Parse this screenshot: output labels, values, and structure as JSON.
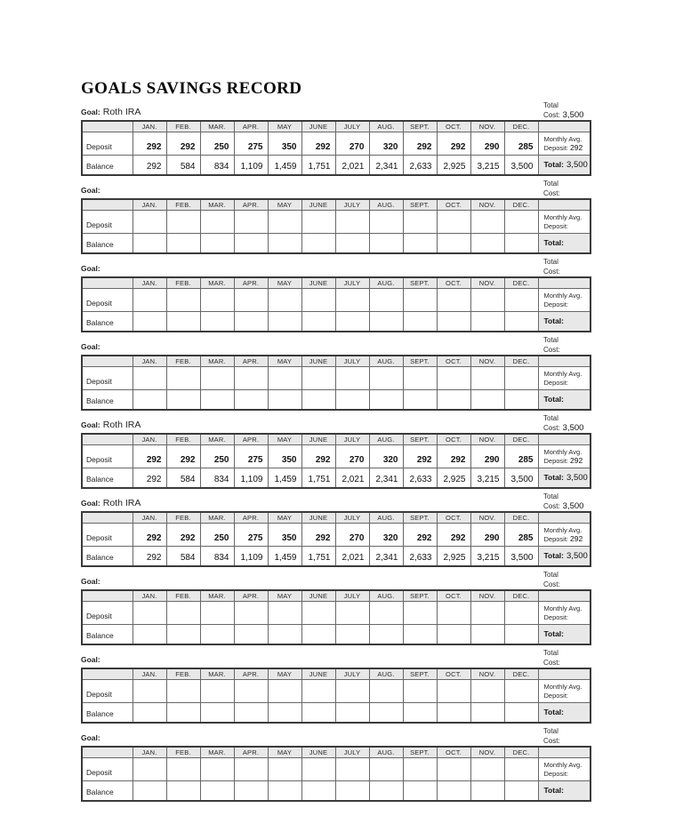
{
  "page": {
    "title": "GOALS SAVINGS RECORD"
  },
  "labels": {
    "goal": "Goal:",
    "total": "Total",
    "cost": "Cost:",
    "deposit": "Deposit",
    "balance": "Balance",
    "monthly_avg_line1": "Monthly Avg.",
    "monthly_avg_label": "Deposit:",
    "row_total_label": "Total:"
  },
  "months": [
    "JAN.",
    "FEB.",
    "MAR.",
    "APR.",
    "MAY",
    "JUNE",
    "JULY",
    "AUG.",
    "SEPT.",
    "OCT.",
    "NOV.",
    "DEC."
  ],
  "colors": {
    "header_fill": "#e8e8e8",
    "summary_fill": "#e8e8e8",
    "outer_border": "#3a3a3a",
    "inner_border": "#686868"
  },
  "tables": [
    {
      "goal": "Roth IRA",
      "total_cost": "3,500",
      "deposits": [
        "292",
        "292",
        "250",
        "275",
        "350",
        "292",
        "270",
        "320",
        "292",
        "292",
        "290",
        "285"
      ],
      "balances": [
        "292",
        "584",
        "834",
        "1,109",
        "1,459",
        "1,751",
        "2,021",
        "2,341",
        "2,633",
        "2,925",
        "3,215",
        "3,500"
      ],
      "monthly_avg_deposit": "292",
      "total": "3,500"
    },
    {
      "goal": "",
      "total_cost": "",
      "deposits": [
        "",
        "",
        "",
        "",
        "",
        "",
        "",
        "",
        "",
        "",
        "",
        ""
      ],
      "balances": [
        "",
        "",
        "",
        "",
        "",
        "",
        "",
        "",
        "",
        "",
        "",
        ""
      ],
      "monthly_avg_deposit": "",
      "total": ""
    },
    {
      "goal": "",
      "total_cost": "",
      "deposits": [
        "",
        "",
        "",
        "",
        "",
        "",
        "",
        "",
        "",
        "",
        "",
        ""
      ],
      "balances": [
        "",
        "",
        "",
        "",
        "",
        "",
        "",
        "",
        "",
        "",
        "",
        ""
      ],
      "monthly_avg_deposit": "",
      "total": ""
    },
    {
      "goal": "",
      "total_cost": "",
      "deposits": [
        "",
        "",
        "",
        "",
        "",
        "",
        "",
        "",
        "",
        "",
        "",
        ""
      ],
      "balances": [
        "",
        "",
        "",
        "",
        "",
        "",
        "",
        "",
        "",
        "",
        "",
        ""
      ],
      "monthly_avg_deposit": "",
      "total": ""
    },
    {
      "goal": "Roth IRA",
      "total_cost": "3,500",
      "deposits": [
        "292",
        "292",
        "250",
        "275",
        "350",
        "292",
        "270",
        "320",
        "292",
        "292",
        "290",
        "285"
      ],
      "balances": [
        "292",
        "584",
        "834",
        "1,109",
        "1,459",
        "1,751",
        "2,021",
        "2,341",
        "2,633",
        "2,925",
        "3,215",
        "3,500"
      ],
      "monthly_avg_deposit": "292",
      "total": "3,500"
    },
    {
      "goal": "Roth IRA",
      "total_cost": "3,500",
      "deposits": [
        "292",
        "292",
        "250",
        "275",
        "350",
        "292",
        "270",
        "320",
        "292",
        "292",
        "290",
        "285"
      ],
      "balances": [
        "292",
        "584",
        "834",
        "1,109",
        "1,459",
        "1,751",
        "2,021",
        "2,341",
        "2,633",
        "2,925",
        "3,215",
        "3,500"
      ],
      "monthly_avg_deposit": "292",
      "total": "3,500"
    },
    {
      "goal": "",
      "total_cost": "",
      "deposits": [
        "",
        "",
        "",
        "",
        "",
        "",
        "",
        "",
        "",
        "",
        "",
        ""
      ],
      "balances": [
        "",
        "",
        "",
        "",
        "",
        "",
        "",
        "",
        "",
        "",
        "",
        ""
      ],
      "monthly_avg_deposit": "",
      "total": ""
    },
    {
      "goal": "",
      "total_cost": "",
      "deposits": [
        "",
        "",
        "",
        "",
        "",
        "",
        "",
        "",
        "",
        "",
        "",
        ""
      ],
      "balances": [
        "",
        "",
        "",
        "",
        "",
        "",
        "",
        "",
        "",
        "",
        "",
        ""
      ],
      "monthly_avg_deposit": "",
      "total": ""
    },
    {
      "goal": "",
      "total_cost": "",
      "deposits": [
        "",
        "",
        "",
        "",
        "",
        "",
        "",
        "",
        "",
        "",
        "",
        ""
      ],
      "balances": [
        "",
        "",
        "",
        "",
        "",
        "",
        "",
        "",
        "",
        "",
        "",
        ""
      ],
      "monthly_avg_deposit": "",
      "total": ""
    }
  ]
}
